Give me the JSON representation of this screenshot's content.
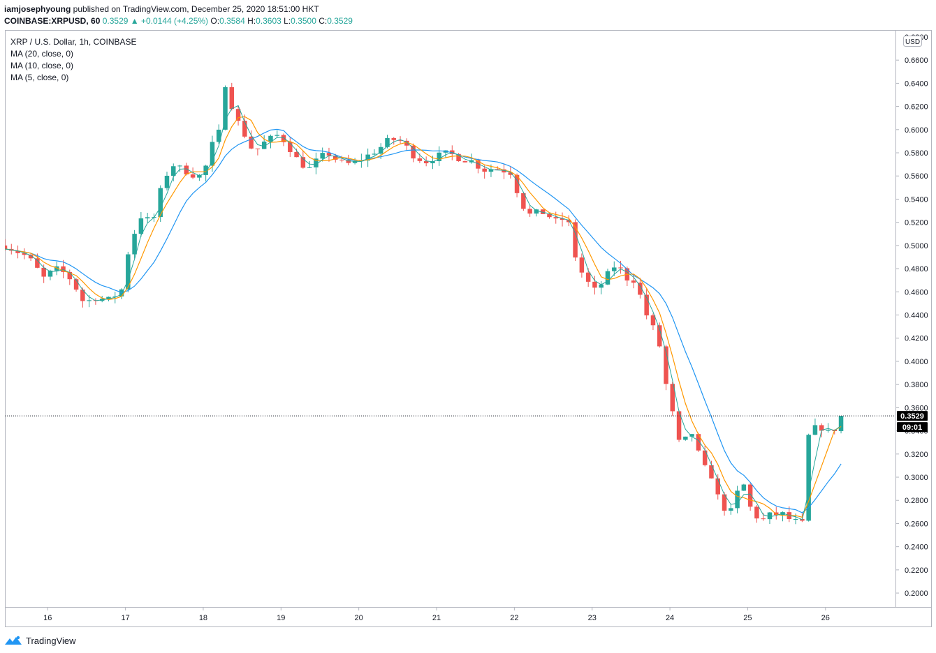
{
  "header": {
    "author": "iamjosephyoung",
    "published": " published on TradingView.com, December 25, 2020 18:51:00 HKT",
    "symbol_line": "COINBASE:XRPUSD, 60",
    "last": "0.3529",
    "change": "▲ +0.0144 (+4.25%)",
    "ohlc": {
      "o_label": "O:",
      "o": "0.3584",
      "h_label": "H:",
      "h": "0.3603",
      "l_label": "L:",
      "l": "0.3500",
      "c_label": "C:",
      "c": "0.3529"
    }
  },
  "legend": {
    "title": "XRP / U.S. Dollar, 1h, COINBASE",
    "ma20": "MA (20, close, 0)",
    "ma10": "MA (10, close, 0)",
    "ma5": "MA (5, close, 0)"
  },
  "footer": {
    "brand": "TradingView"
  },
  "colors": {
    "up": "#26a69a",
    "down": "#ef5350",
    "ma20": "#2196f3",
    "ma10": "#ff9800",
    "ma5": "#26a69a",
    "axis_text": "#131722",
    "border": "#b2b5be"
  },
  "chart_data": {
    "type": "candlestick",
    "title": "XRP / U.S. Dollar, 1h, COINBASE",
    "currency": "USD",
    "ylim": [
      0.188,
      0.686
    ],
    "y_ticks": [
      "0.2000",
      "0.2200",
      "0.2400",
      "0.2600",
      "0.2800",
      "0.3000",
      "0.3200",
      "0.3400",
      "0.3600",
      "0.3800",
      "0.4000",
      "0.4200",
      "0.4400",
      "0.4600",
      "0.4800",
      "0.5000",
      "0.5200",
      "0.5400",
      "0.5600",
      "0.5800",
      "0.6000",
      "0.6200",
      "0.6400",
      "0.6600"
    ],
    "y_top_partial": "0.6800",
    "x_ticks": [
      "16",
      "17",
      "18",
      "19",
      "20",
      "21",
      "22",
      "23",
      "24",
      "25",
      "26"
    ],
    "x_day_positions": [
      15.5,
      16.5,
      17.5,
      18.5,
      19.5,
      20.5,
      21.5,
      22.5,
      23.5,
      24.5,
      25.5
    ],
    "x_range": [
      14.95,
      26.4
    ],
    "last_price": 0.3529,
    "last_price_label": "0.3529",
    "countdown": "09:01",
    "price_path": [
      [
        14.95,
        0.5
      ],
      [
        15.1,
        0.495
      ],
      [
        15.25,
        0.49
      ],
      [
        15.45,
        0.472
      ],
      [
        15.6,
        0.48
      ],
      [
        15.75,
        0.475
      ],
      [
        15.85,
        0.465
      ],
      [
        15.97,
        0.45
      ],
      [
        16.1,
        0.455
      ],
      [
        16.3,
        0.453
      ],
      [
        16.45,
        0.462
      ],
      [
        16.55,
        0.5
      ],
      [
        16.7,
        0.525
      ],
      [
        16.85,
        0.52
      ],
      [
        16.98,
        0.555
      ],
      [
        17.1,
        0.57
      ],
      [
        17.25,
        0.565
      ],
      [
        17.4,
        0.56
      ],
      [
        17.5,
        0.56
      ],
      [
        17.6,
        0.585
      ],
      [
        17.72,
        0.6
      ],
      [
        17.8,
        0.65
      ],
      [
        17.88,
        0.615
      ],
      [
        18.0,
        0.6
      ],
      [
        18.15,
        0.58
      ],
      [
        18.3,
        0.59
      ],
      [
        18.45,
        0.595
      ],
      [
        18.55,
        0.59
      ],
      [
        18.7,
        0.575
      ],
      [
        18.85,
        0.565
      ],
      [
        18.98,
        0.575
      ],
      [
        19.1,
        0.58
      ],
      [
        19.25,
        0.572
      ],
      [
        19.4,
        0.57
      ],
      [
        19.55,
        0.575
      ],
      [
        19.75,
        0.583
      ],
      [
        19.9,
        0.592
      ],
      [
        20.05,
        0.59
      ],
      [
        20.2,
        0.578
      ],
      [
        20.35,
        0.572
      ],
      [
        20.5,
        0.577
      ],
      [
        20.65,
        0.58
      ],
      [
        20.8,
        0.575
      ],
      [
        20.95,
        0.573
      ],
      [
        21.1,
        0.565
      ],
      [
        21.25,
        0.567
      ],
      [
        21.45,
        0.563
      ],
      [
        21.6,
        0.535
      ],
      [
        21.72,
        0.525
      ],
      [
        21.82,
        0.53
      ],
      [
        21.95,
        0.525
      ],
      [
        22.05,
        0.52
      ],
      [
        22.18,
        0.525
      ],
      [
        22.3,
        0.485
      ],
      [
        22.42,
        0.47
      ],
      [
        22.55,
        0.46
      ],
      [
        22.7,
        0.475
      ],
      [
        22.82,
        0.485
      ],
      [
        22.92,
        0.472
      ],
      [
        23.05,
        0.47
      ],
      [
        23.2,
        0.44
      ],
      [
        23.35,
        0.42
      ],
      [
        23.45,
        0.38
      ],
      [
        23.55,
        0.35
      ],
      [
        23.65,
        0.32
      ],
      [
        23.75,
        0.345
      ],
      [
        23.82,
        0.33
      ],
      [
        23.92,
        0.31
      ],
      [
        24.05,
        0.3
      ],
      [
        24.15,
        0.275
      ],
      [
        24.3,
        0.27
      ],
      [
        24.42,
        0.3
      ],
      [
        24.55,
        0.27
      ],
      [
        24.68,
        0.262
      ],
      [
        24.8,
        0.268
      ],
      [
        24.95,
        0.268
      ],
      [
        25.05,
        0.263
      ],
      [
        25.2,
        0.26
      ],
      [
        25.28,
        0.335
      ],
      [
        25.4,
        0.345
      ],
      [
        25.55,
        0.338
      ],
      [
        25.68,
        0.345
      ],
      [
        25.76,
        0.3529
      ]
    ]
  }
}
